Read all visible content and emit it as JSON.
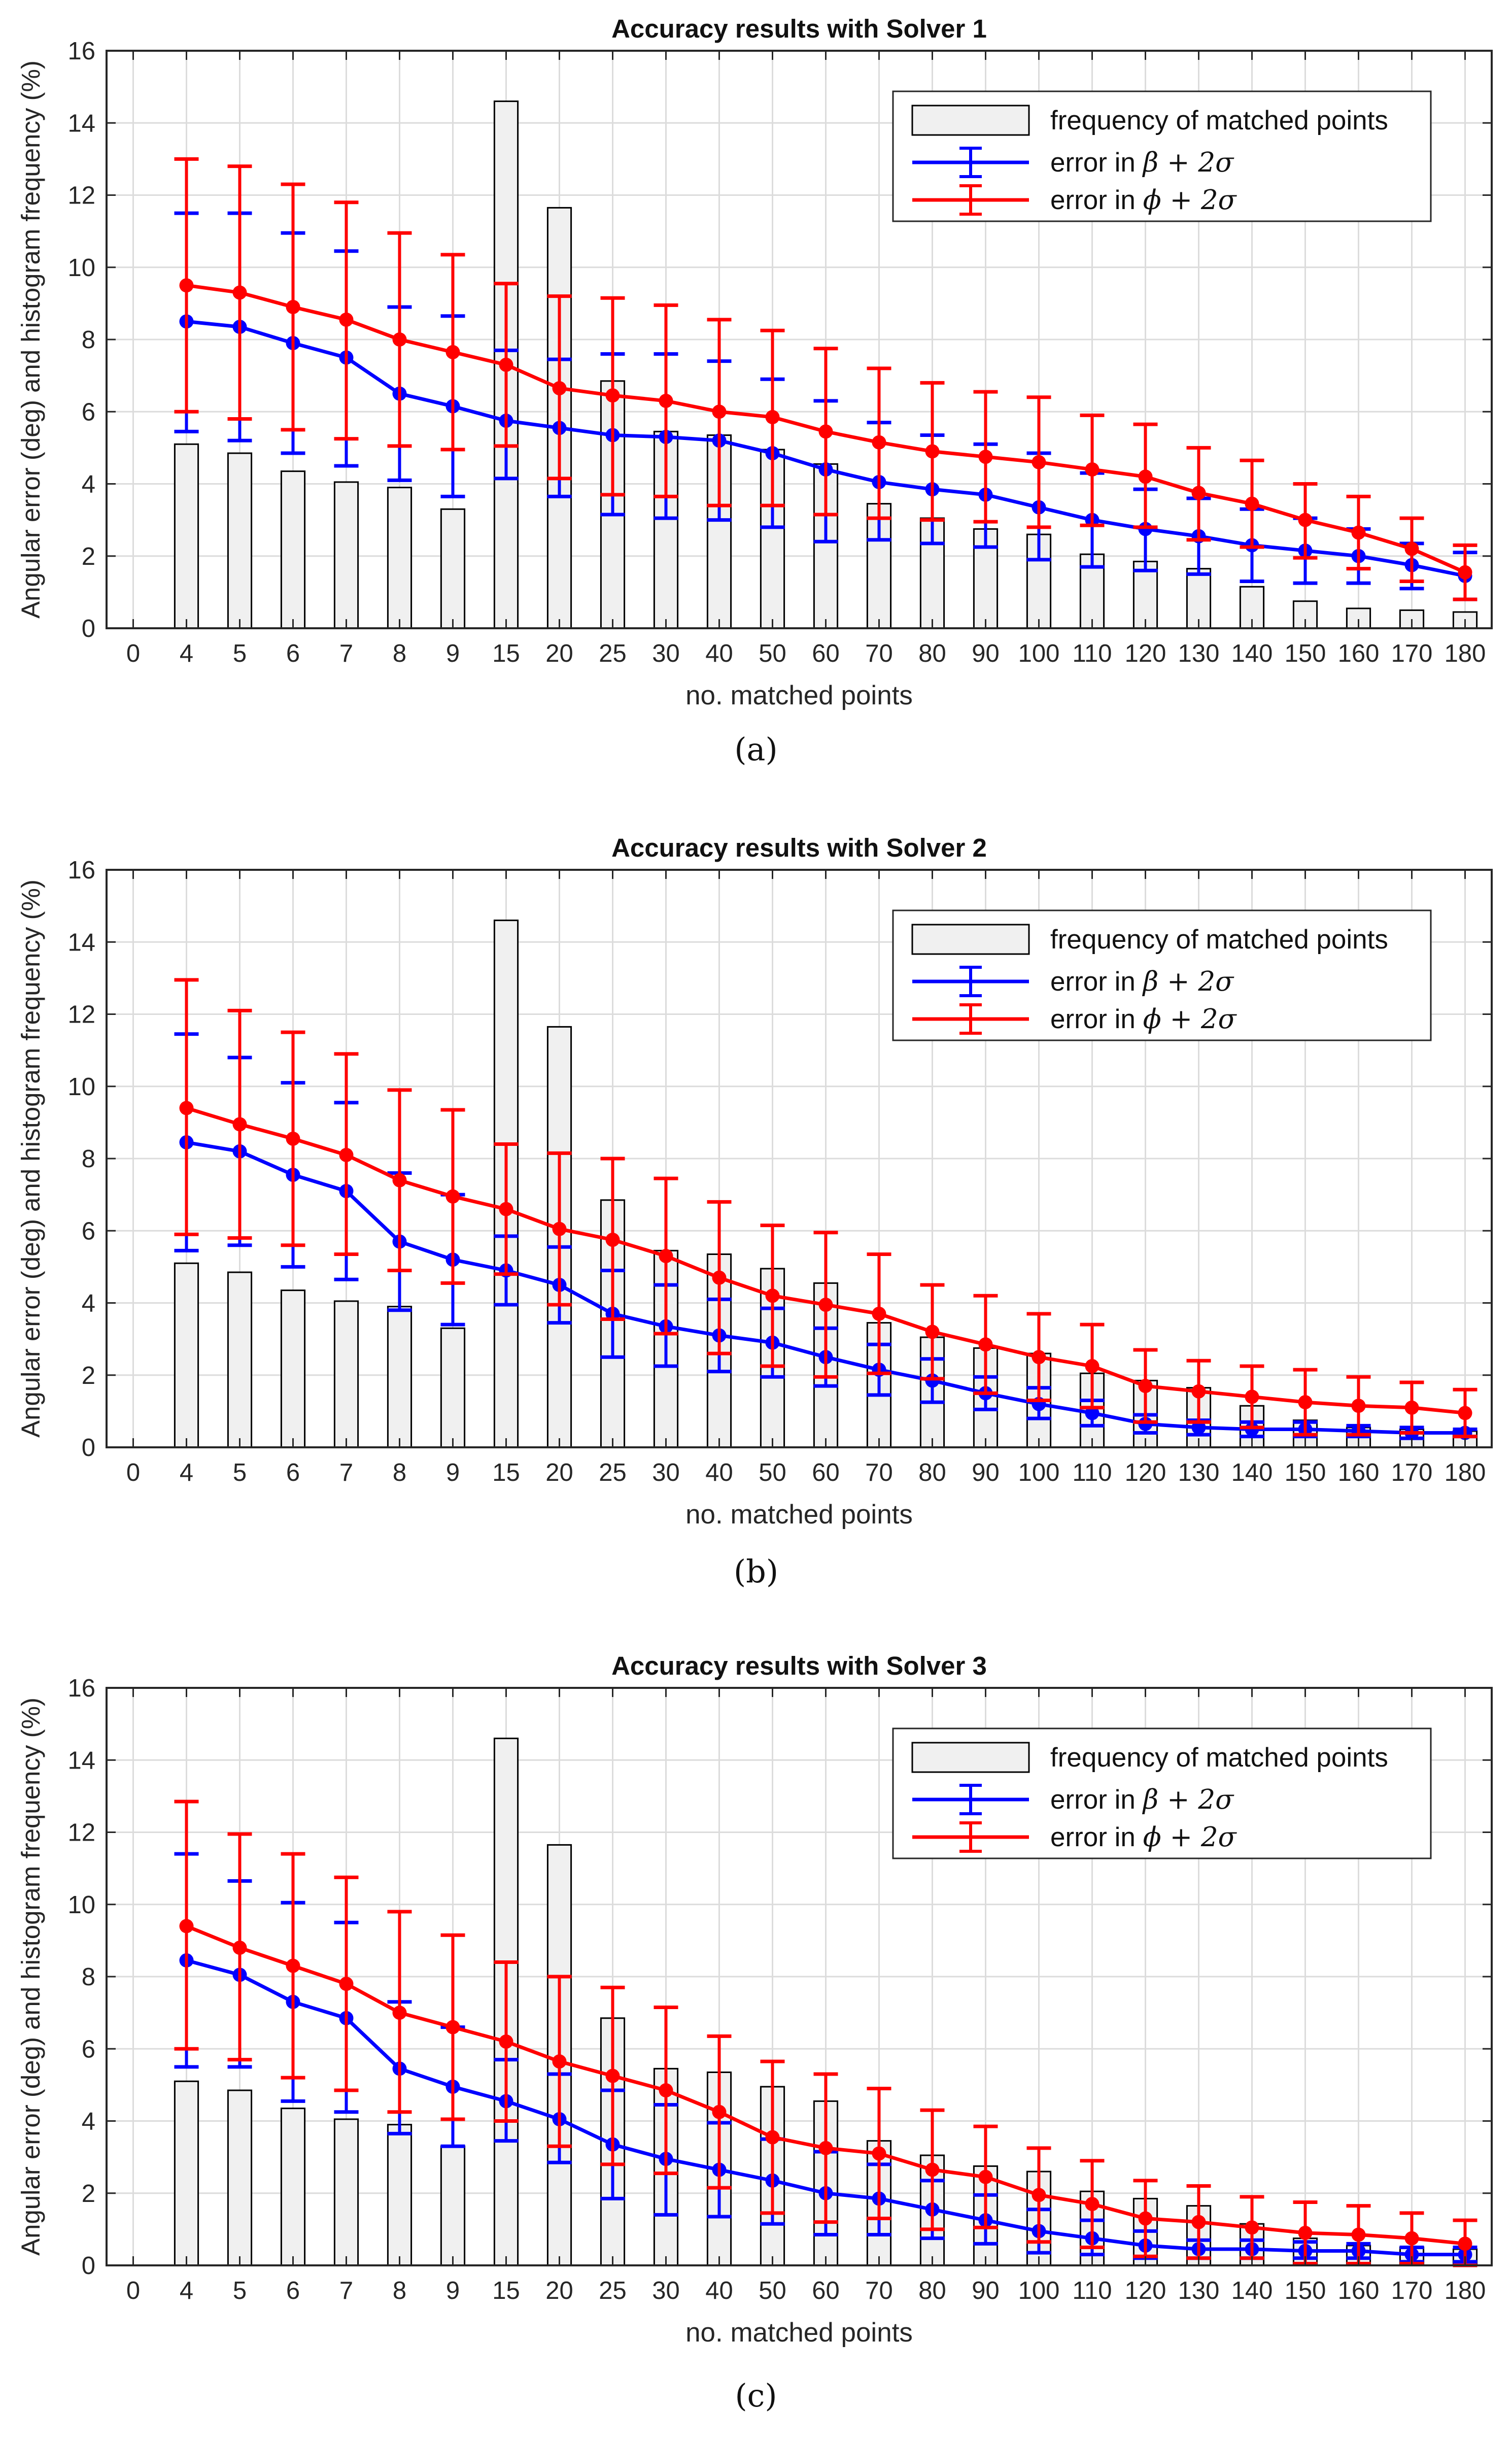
{
  "charts": {
    "common": {
      "categories": [
        "4",
        "5",
        "6",
        "7",
        "8",
        "9",
        "15",
        "20",
        "25",
        "30",
        "40",
        "50",
        "60",
        "70",
        "80",
        "90",
        "100",
        "110",
        "120",
        "130",
        "140",
        "150",
        "160",
        "170",
        "180"
      ],
      "x_tick_labels": [
        "0",
        "4",
        "5",
        "6",
        "7",
        "8",
        "9",
        "15",
        "20",
        "25",
        "30",
        "40",
        "50",
        "60",
        "70",
        "80",
        "90",
        "100",
        "110",
        "120",
        "130",
        "140",
        "150",
        "160",
        "170",
        "180"
      ],
      "y_tick_labels": [
        "0",
        "2",
        "4",
        "6",
        "8",
        "10",
        "12",
        "14",
        "16"
      ],
      "xlabel": "no. matched points",
      "ylabel": "Angular error (deg) and histogram frequency (%)",
      "ylim": [
        0,
        16
      ],
      "legend": {
        "hist": "frequency of matched points",
        "beta_prefix": "error in ",
        "beta_math": "β + 2σ",
        "phi_prefix": "error in ",
        "phi_math": "ϕ + 2σ"
      },
      "colors": {
        "beta": "#0000ff",
        "phi": "#ff0000",
        "bar_fill": "#f0f0f0",
        "bar_edge": "#000000",
        "grid": "#dcdcdc"
      }
    },
    "captions": [
      "(a)",
      "(b)",
      "(c)"
    ]
  },
  "chart_data": [
    {
      "type": "bar+line",
      "title": "Accuracy results with Solver 1",
      "xlabel": "no. matched points",
      "ylabel": "Angular error (deg) and histogram frequency (%)",
      "ylim": [
        0,
        16
      ],
      "legend_position": "top-right",
      "grid": true,
      "categories": [
        "4",
        "5",
        "6",
        "7",
        "8",
        "9",
        "15",
        "20",
        "25",
        "30",
        "40",
        "50",
        "60",
        "70",
        "80",
        "90",
        "100",
        "110",
        "120",
        "130",
        "140",
        "150",
        "160",
        "170",
        "180"
      ],
      "histogram": [
        5.1,
        4.85,
        4.35,
        4.05,
        3.9,
        3.3,
        14.6,
        11.65,
        6.85,
        5.45,
        5.35,
        4.95,
        4.55,
        3.45,
        3.05,
        2.75,
        2.6,
        2.05,
        1.85,
        1.65,
        1.15,
        0.75,
        0.55,
        0.5,
        0.45
      ],
      "series": [
        {
          "name": "error in β + 2σ",
          "values": [
            8.5,
            8.35,
            7.9,
            7.5,
            6.5,
            6.15,
            5.75,
            5.55,
            5.35,
            5.3,
            5.2,
            4.85,
            4.4,
            4.05,
            3.85,
            3.7,
            3.35,
            3.0,
            2.75,
            2.55,
            2.3,
            2.15,
            2.0,
            1.75,
            1.45
          ],
          "upper": [
            11.5,
            11.5,
            10.95,
            10.45,
            8.9,
            8.65,
            7.7,
            7.45,
            7.6,
            7.6,
            7.4,
            6.9,
            6.3,
            5.7,
            5.35,
            5.1,
            4.85,
            4.3,
            3.85,
            3.6,
            3.3,
            3.05,
            2.75,
            2.35,
            2.1
          ],
          "lower": [
            5.45,
            5.2,
            4.85,
            4.5,
            4.1,
            3.65,
            4.15,
            3.65,
            3.15,
            3.05,
            3.0,
            2.8,
            2.4,
            2.45,
            2.35,
            2.25,
            1.9,
            1.7,
            1.6,
            1.5,
            1.3,
            1.25,
            1.25,
            1.1,
            0.8
          ]
        },
        {
          "name": "error in ϕ + 2σ",
          "values": [
            9.5,
            9.3,
            8.9,
            8.55,
            8.0,
            7.65,
            7.3,
            6.65,
            6.45,
            6.3,
            6.0,
            5.85,
            5.45,
            5.15,
            4.9,
            4.75,
            4.6,
            4.4,
            4.2,
            3.75,
            3.45,
            3.0,
            2.65,
            2.2,
            1.55
          ],
          "upper": [
            13.0,
            12.8,
            12.3,
            11.8,
            10.95,
            10.35,
            9.55,
            9.2,
            9.15,
            8.95,
            8.55,
            8.25,
            7.75,
            7.2,
            6.8,
            6.55,
            6.4,
            5.9,
            5.65,
            5.0,
            4.65,
            4.0,
            3.65,
            3.05,
            2.3
          ],
          "lower": [
            6.0,
            5.8,
            5.5,
            5.25,
            5.05,
            4.95,
            5.05,
            4.15,
            3.7,
            3.65,
            3.4,
            3.4,
            3.15,
            3.05,
            3.0,
            2.95,
            2.8,
            2.85,
            2.8,
            2.45,
            2.25,
            1.95,
            1.65,
            1.3,
            0.8
          ]
        }
      ]
    },
    {
      "type": "bar+line",
      "title": "Accuracy results with Solver 2",
      "xlabel": "no. matched points",
      "ylabel": "Angular error (deg) and histogram frequency (%)",
      "ylim": [
        0,
        16
      ],
      "legend_position": "top-right",
      "grid": true,
      "categories": [
        "4",
        "5",
        "6",
        "7",
        "8",
        "9",
        "15",
        "20",
        "25",
        "30",
        "40",
        "50",
        "60",
        "70",
        "80",
        "90",
        "100",
        "110",
        "120",
        "130",
        "140",
        "150",
        "160",
        "170",
        "180"
      ],
      "histogram": [
        5.1,
        4.85,
        4.35,
        4.05,
        3.9,
        3.3,
        14.6,
        11.65,
        6.85,
        5.45,
        5.35,
        4.95,
        4.55,
        3.45,
        3.05,
        2.75,
        2.6,
        2.05,
        1.85,
        1.65,
        1.15,
        0.75,
        0.55,
        0.5,
        0.45
      ],
      "series": [
        {
          "name": "error in β + 2σ",
          "values": [
            8.45,
            8.2,
            7.55,
            7.1,
            5.7,
            5.2,
            4.9,
            4.5,
            3.7,
            3.35,
            3.1,
            2.9,
            2.5,
            2.15,
            1.85,
            1.5,
            1.2,
            0.95,
            0.65,
            0.55,
            0.5,
            0.5,
            0.45,
            0.4,
            0.4
          ],
          "upper": [
            11.45,
            10.8,
            10.1,
            9.55,
            7.6,
            7.0,
            5.85,
            5.55,
            4.9,
            4.5,
            4.1,
            3.85,
            3.3,
            2.85,
            2.45,
            1.95,
            1.65,
            1.3,
            0.9,
            0.75,
            0.7,
            0.7,
            0.6,
            0.55,
            0.5
          ],
          "lower": [
            5.45,
            5.6,
            5.0,
            4.65,
            3.8,
            3.4,
            3.95,
            3.45,
            2.5,
            2.25,
            2.1,
            1.95,
            1.7,
            1.45,
            1.25,
            1.05,
            0.8,
            0.6,
            0.4,
            0.35,
            0.3,
            0.3,
            0.3,
            0.25,
            0.3
          ]
        },
        {
          "name": "error in ϕ + 2σ",
          "values": [
            9.4,
            8.95,
            8.55,
            8.1,
            7.4,
            6.95,
            6.6,
            6.05,
            5.75,
            5.3,
            4.7,
            4.2,
            3.95,
            3.7,
            3.2,
            2.85,
            2.5,
            2.25,
            1.7,
            1.55,
            1.4,
            1.25,
            1.15,
            1.1,
            0.95
          ],
          "upper": [
            12.95,
            12.1,
            11.5,
            10.9,
            9.9,
            9.35,
            8.4,
            8.15,
            8.0,
            7.45,
            6.8,
            6.15,
            5.95,
            5.35,
            4.5,
            4.2,
            3.7,
            3.4,
            2.7,
            2.4,
            2.25,
            2.15,
            1.95,
            1.8,
            1.6
          ],
          "lower": [
            5.9,
            5.8,
            5.6,
            5.35,
            4.9,
            4.55,
            4.8,
            3.95,
            3.55,
            3.15,
            2.6,
            2.25,
            1.95,
            2.05,
            1.9,
            1.5,
            1.3,
            1.1,
            0.7,
            0.7,
            0.55,
            0.35,
            0.35,
            0.4,
            0.3
          ]
        }
      ]
    },
    {
      "type": "bar+line",
      "title": "Accuracy results with Solver 3",
      "xlabel": "no. matched points",
      "ylabel": "Angular error (deg) and histogram frequency (%)",
      "ylim": [
        0,
        16
      ],
      "legend_position": "top-right",
      "grid": true,
      "categories": [
        "4",
        "5",
        "6",
        "7",
        "8",
        "9",
        "15",
        "20",
        "25",
        "30",
        "40",
        "50",
        "60",
        "70",
        "80",
        "90",
        "100",
        "110",
        "120",
        "130",
        "140",
        "150",
        "160",
        "170",
        "180"
      ],
      "histogram": [
        5.1,
        4.85,
        4.35,
        4.05,
        3.9,
        3.3,
        14.6,
        11.65,
        6.85,
        5.45,
        5.35,
        4.95,
        4.55,
        3.45,
        3.05,
        2.75,
        2.6,
        2.05,
        1.85,
        1.65,
        1.15,
        0.75,
        0.55,
        0.5,
        0.45
      ],
      "series": [
        {
          "name": "error in β + 2σ",
          "values": [
            8.45,
            8.05,
            7.3,
            6.85,
            5.45,
            4.95,
            4.55,
            4.05,
            3.35,
            2.95,
            2.65,
            2.35,
            2.0,
            1.85,
            1.55,
            1.25,
            0.95,
            0.75,
            0.55,
            0.45,
            0.45,
            0.4,
            0.4,
            0.3,
            0.3
          ],
          "upper": [
            11.4,
            10.65,
            10.05,
            9.5,
            7.3,
            6.6,
            5.7,
            5.3,
            4.85,
            4.45,
            3.95,
            3.5,
            3.15,
            2.8,
            2.35,
            1.95,
            1.55,
            1.25,
            0.95,
            0.7,
            0.7,
            0.65,
            0.6,
            0.5,
            0.5
          ],
          "lower": [
            5.5,
            5.5,
            4.55,
            4.25,
            3.65,
            3.3,
            3.45,
            2.85,
            1.85,
            1.4,
            1.35,
            1.15,
            0.85,
            0.85,
            0.75,
            0.6,
            0.35,
            0.3,
            0.2,
            0.2,
            0.2,
            0.2,
            0.2,
            0.1,
            0.1
          ]
        },
        {
          "name": "error in ϕ + 2σ",
          "values": [
            9.4,
            8.8,
            8.3,
            7.8,
            7.0,
            6.6,
            6.2,
            5.65,
            5.25,
            4.85,
            4.25,
            3.55,
            3.25,
            3.1,
            2.65,
            2.45,
            1.95,
            1.7,
            1.3,
            1.2,
            1.05,
            0.9,
            0.85,
            0.75,
            0.6
          ],
          "upper": [
            12.85,
            11.95,
            11.4,
            10.75,
            9.8,
            9.15,
            8.4,
            8.0,
            7.7,
            7.15,
            6.35,
            5.65,
            5.3,
            4.9,
            4.3,
            3.85,
            3.25,
            2.9,
            2.35,
            2.2,
            1.9,
            1.75,
            1.65,
            1.45,
            1.25
          ],
          "lower": [
            6.0,
            5.7,
            5.2,
            4.85,
            4.25,
            4.05,
            4.0,
            3.3,
            2.8,
            2.55,
            2.15,
            1.45,
            1.2,
            1.3,
            1.0,
            1.05,
            0.65,
            0.5,
            0.25,
            0.2,
            0.2,
            0.05,
            0.05,
            0.05,
            0.0
          ]
        }
      ]
    }
  ]
}
